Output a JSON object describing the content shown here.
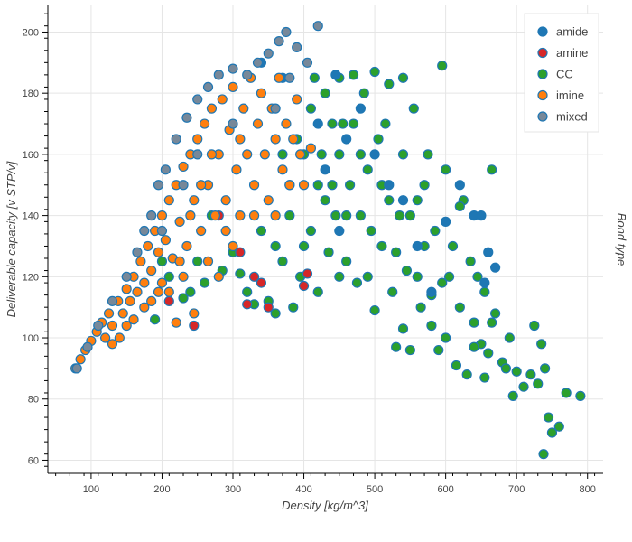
{
  "chart_data": {
    "type": "scatter",
    "title": "",
    "xlabel": "Density [kg/m^3]",
    "ylabel": "Deliverable capacity [v STP/v]",
    "legend_title": "Bond type",
    "legend_placement": "top-right",
    "grid": true,
    "xlim": [
      39,
      822
    ],
    "ylim": [
      56,
      209
    ],
    "xticks": [
      100,
      200,
      300,
      400,
      500,
      600,
      700,
      800
    ],
    "yticks": [
      60,
      80,
      100,
      120,
      140,
      160,
      180,
      200
    ],
    "marker_outline": "#1f77b4",
    "series": [
      {
        "name": "CC",
        "color": "#2ca02c",
        "points": [
          [
            190,
            106
          ],
          [
            210,
            120
          ],
          [
            230,
            113
          ],
          [
            250,
            125
          ],
          [
            270,
            140
          ],
          [
            285,
            122
          ],
          [
            300,
            128
          ],
          [
            310,
            121
          ],
          [
            320,
            115
          ],
          [
            330,
            111
          ],
          [
            340,
            135
          ],
          [
            350,
            112
          ],
          [
            360,
            108
          ],
          [
            370,
            125
          ],
          [
            380,
            140
          ],
          [
            390,
            165
          ],
          [
            400,
            130
          ],
          [
            410,
            175
          ],
          [
            420,
            115
          ],
          [
            430,
            180
          ],
          [
            440,
            150
          ],
          [
            450,
            185
          ],
          [
            460,
            125
          ],
          [
            470,
            170
          ],
          [
            480,
            140
          ],
          [
            490,
            155
          ],
          [
            500,
            109
          ],
          [
            505,
            165
          ],
          [
            510,
            130
          ],
          [
            520,
            145
          ],
          [
            530,
            97
          ],
          [
            540,
            160
          ],
          [
            550,
            96
          ],
          [
            555,
            175
          ],
          [
            560,
            120
          ],
          [
            570,
            150
          ],
          [
            580,
            114
          ],
          [
            585,
            135
          ],
          [
            590,
            96
          ],
          [
            595,
            189
          ],
          [
            600,
            155
          ],
          [
            610,
            130
          ],
          [
            615,
            91
          ],
          [
            620,
            110
          ],
          [
            625,
            145
          ],
          [
            630,
            88
          ],
          [
            635,
            125
          ],
          [
            640,
            105
          ],
          [
            645,
            120
          ],
          [
            650,
            98
          ],
          [
            655,
            115
          ],
          [
            660,
            95
          ],
          [
            665,
            155
          ],
          [
            670,
            108
          ],
          [
            680,
            92
          ],
          [
            690,
            100
          ],
          [
            695,
            81
          ],
          [
            700,
            89
          ],
          [
            710,
            84
          ],
          [
            720,
            88
          ],
          [
            725,
            104
          ],
          [
            730,
            85
          ],
          [
            735,
            98
          ],
          [
            738,
            62
          ],
          [
            740,
            90
          ],
          [
            745,
            74
          ],
          [
            750,
            69
          ],
          [
            760,
            71
          ],
          [
            770,
            82
          ],
          [
            790,
            81
          ],
          [
            415,
            185
          ],
          [
            425,
            160
          ],
          [
            435,
            128
          ],
          [
            445,
            140
          ],
          [
            455,
            170
          ],
          [
            465,
            150
          ],
          [
            475,
            118
          ],
          [
            485,
            180
          ],
          [
            495,
            135
          ],
          [
            515,
            170
          ],
          [
            525,
            115
          ],
          [
            535,
            140
          ],
          [
            545,
            122
          ],
          [
            565,
            110
          ],
          [
            575,
            160
          ],
          [
            605,
            120
          ],
          [
            620,
            143
          ],
          [
            560,
            145
          ],
          [
            580,
            104
          ],
          [
            600,
            100
          ],
          [
            640,
            97
          ],
          [
            655,
            87
          ],
          [
            665,
            105
          ],
          [
            685,
            90
          ],
          [
            595,
            118
          ],
          [
            470,
            186
          ],
          [
            500,
            187
          ],
          [
            520,
            183
          ],
          [
            540,
            185
          ],
          [
            450,
            160
          ],
          [
            430,
            145
          ],
          [
            410,
            135
          ],
          [
            395,
            120
          ],
          [
            385,
            110
          ],
          [
            540,
            103
          ],
          [
            260,
            118
          ],
          [
            240,
            115
          ],
          [
            200,
            125
          ],
          [
            460,
            140
          ],
          [
            480,
            160
          ],
          [
            510,
            150
          ],
          [
            530,
            128
          ],
          [
            550,
            140
          ],
          [
            570,
            130
          ],
          [
            440,
            170
          ],
          [
            420,
            150
          ],
          [
            400,
            160
          ],
          [
            380,
            150
          ],
          [
            370,
            160
          ],
          [
            450,
            120
          ],
          [
            490,
            120
          ],
          [
            360,
            130
          ]
        ]
      },
      {
        "name": "amide",
        "color": "#1f77b4",
        "points": [
          [
            340,
            190
          ],
          [
            370,
            185
          ],
          [
            420,
            170
          ],
          [
            445,
            186
          ],
          [
            460,
            165
          ],
          [
            480,
            175
          ],
          [
            500,
            160
          ],
          [
            520,
            150
          ],
          [
            540,
            145
          ],
          [
            560,
            130
          ],
          [
            580,
            115
          ],
          [
            600,
            138
          ],
          [
            620,
            150
          ],
          [
            640,
            140
          ],
          [
            650,
            140
          ],
          [
            660,
            128
          ],
          [
            670,
            123
          ],
          [
            655,
            118
          ],
          [
            450,
            135
          ],
          [
            430,
            155
          ]
        ]
      },
      {
        "name": "amine",
        "color": "#d62728",
        "points": [
          [
            210,
            112
          ],
          [
            245,
            104
          ],
          [
            310,
            128
          ],
          [
            320,
            111
          ],
          [
            330,
            120
          ],
          [
            340,
            118
          ],
          [
            350,
            110
          ],
          [
            400,
            117
          ],
          [
            405,
            121
          ],
          [
            280,
            140
          ]
        ]
      },
      {
        "name": "imine",
        "color": "#ff7f0e",
        "points": [
          [
            78,
            90
          ],
          [
            85,
            93
          ],
          [
            92,
            96
          ],
          [
            100,
            99
          ],
          [
            108,
            102
          ],
          [
            115,
            105
          ],
          [
            120,
            100
          ],
          [
            125,
            108
          ],
          [
            130,
            104
          ],
          [
            138,
            112
          ],
          [
            145,
            108
          ],
          [
            150,
            116
          ],
          [
            155,
            112
          ],
          [
            160,
            120
          ],
          [
            165,
            115
          ],
          [
            170,
            125
          ],
          [
            175,
            118
          ],
          [
            180,
            130
          ],
          [
            185,
            122
          ],
          [
            190,
            135
          ],
          [
            195,
            128
          ],
          [
            200,
            140
          ],
          [
            205,
            132
          ],
          [
            210,
            145
          ],
          [
            215,
            126
          ],
          [
            220,
            150
          ],
          [
            225,
            138
          ],
          [
            230,
            156
          ],
          [
            235,
            130
          ],
          [
            240,
            160
          ],
          [
            245,
            145
          ],
          [
            250,
            165
          ],
          [
            255,
            135
          ],
          [
            260,
            170
          ],
          [
            265,
            150
          ],
          [
            270,
            175
          ],
          [
            275,
            140
          ],
          [
            280,
            160
          ],
          [
            285,
            178
          ],
          [
            290,
            145
          ],
          [
            295,
            168
          ],
          [
            300,
            182
          ],
          [
            305,
            155
          ],
          [
            310,
            140
          ],
          [
            315,
            175
          ],
          [
            320,
            160
          ],
          [
            325,
            185
          ],
          [
            330,
            150
          ],
          [
            335,
            170
          ],
          [
            340,
            180
          ],
          [
            345,
            160
          ],
          [
            350,
            145
          ],
          [
            355,
            175
          ],
          [
            360,
            165
          ],
          [
            365,
            185
          ],
          [
            370,
            155
          ],
          [
            375,
            170
          ],
          [
            380,
            150
          ],
          [
            385,
            165
          ],
          [
            390,
            178
          ],
          [
            395,
            160
          ],
          [
            400,
            150
          ],
          [
            410,
            162
          ],
          [
            245,
            108
          ],
          [
            210,
            115
          ],
          [
            230,
            120
          ],
          [
            265,
            125
          ],
          [
            290,
            135
          ],
          [
            185,
            112
          ],
          [
            160,
            106
          ],
          [
            140,
            100
          ],
          [
            220,
            105
          ],
          [
            300,
            130
          ],
          [
            330,
            140
          ],
          [
            360,
            140
          ],
          [
            280,
            120
          ],
          [
            200,
            118
          ],
          [
            255,
            150
          ],
          [
            310,
            165
          ],
          [
            270,
            160
          ],
          [
            240,
            140
          ],
          [
            225,
            125
          ],
          [
            195,
            115
          ],
          [
            175,
            110
          ],
          [
            150,
            104
          ],
          [
            130,
            98
          ]
        ]
      },
      {
        "name": "mixed",
        "color": "#778899",
        "points": [
          [
            80,
            90
          ],
          [
            95,
            97
          ],
          [
            110,
            104
          ],
          [
            130,
            112
          ],
          [
            150,
            120
          ],
          [
            165,
            128
          ],
          [
            175,
            135
          ],
          [
            185,
            140
          ],
          [
            195,
            150
          ],
          [
            205,
            155
          ],
          [
            220,
            165
          ],
          [
            235,
            172
          ],
          [
            250,
            178
          ],
          [
            265,
            182
          ],
          [
            280,
            186
          ],
          [
            300,
            188
          ],
          [
            320,
            186
          ],
          [
            335,
            190
          ],
          [
            350,
            193
          ],
          [
            365,
            197
          ],
          [
            375,
            200
          ],
          [
            390,
            195
          ],
          [
            405,
            190
          ],
          [
            420,
            202
          ],
          [
            380,
            185
          ],
          [
            360,
            175
          ],
          [
            300,
            170
          ],
          [
            250,
            160
          ],
          [
            230,
            150
          ],
          [
            200,
            135
          ]
        ]
      }
    ],
    "legend_order": [
      "amide",
      "amine",
      "CC",
      "imine",
      "mixed"
    ]
  }
}
